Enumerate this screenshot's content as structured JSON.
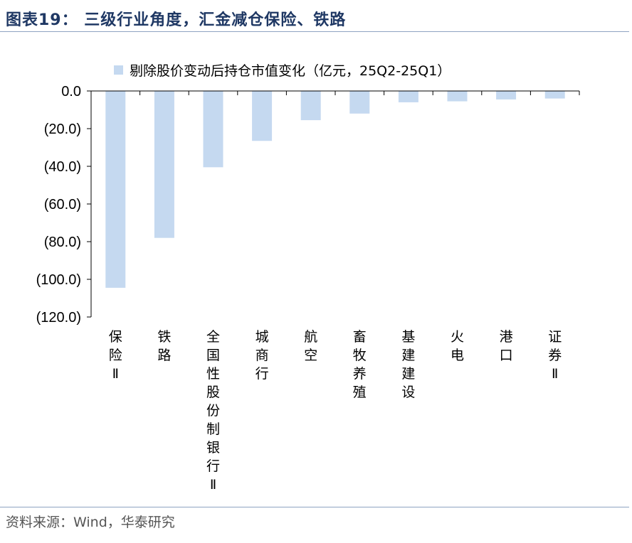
{
  "header": {
    "title": "图表19： 三级行业角度，汇金减仓保险、铁路"
  },
  "footer": {
    "source": "资料来源：Wind，华泰研究"
  },
  "colors": {
    "bar": "#c5d9f0",
    "title": "#1f3864",
    "rule": "#8ea3c2"
  },
  "chart_data": {
    "type": "bar",
    "title": "",
    "xlabel": "",
    "ylabel": "",
    "legend_position": "top",
    "grid": false,
    "categories": [
      "保险Ⅱ",
      "铁路",
      "全国性股份制银行Ⅱ",
      "城商行",
      "航空",
      "畜牧养殖",
      "基建建设",
      "火电",
      "港口",
      "证券Ⅱ"
    ],
    "series": [
      {
        "name": "剔除股价变动后持仓市值变化（亿元，25Q2-25Q1）",
        "values": [
          -104.5,
          -78.0,
          -40.5,
          -26.5,
          -15.5,
          -12.0,
          -6.0,
          -5.5,
          -4.5,
          -4.0
        ]
      }
    ],
    "ylim": [
      -120,
      0
    ],
    "y_ticks": [
      "0.0",
      "(20.0)",
      "(40.0)",
      "(60.0)",
      "(80.0)",
      "(100.0)",
      "(120.0)"
    ],
    "y_tick_values": [
      0,
      -20,
      -40,
      -60,
      -80,
      -100,
      -120
    ]
  }
}
